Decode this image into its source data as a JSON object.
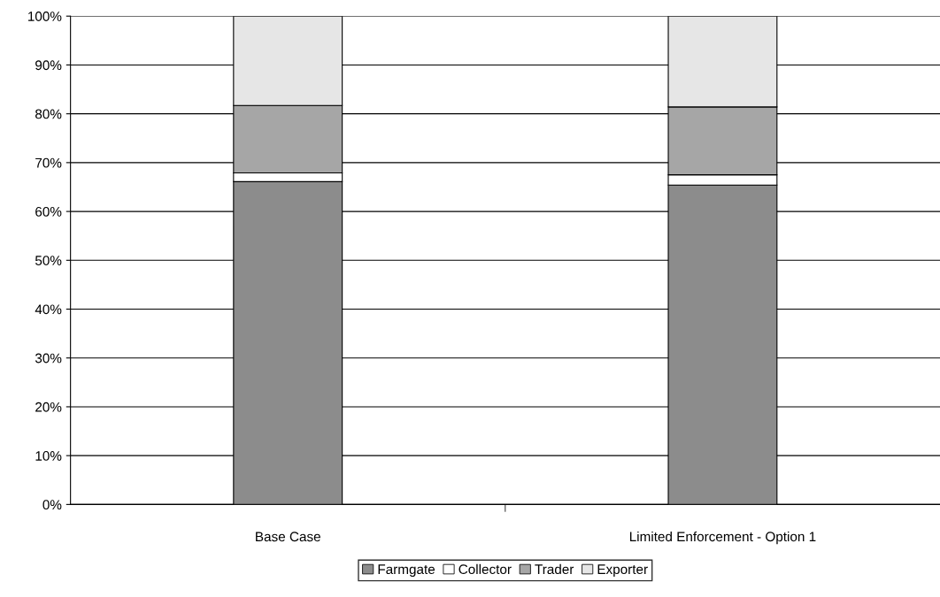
{
  "chart_data": {
    "type": "bar",
    "stacked": true,
    "categories": [
      "Base Case",
      "Limited Enforcement - Option 1"
    ],
    "series": [
      {
        "name": "Farmgate",
        "color": "#8c8c8c",
        "values": [
          66.1,
          65.4
        ]
      },
      {
        "name": "Collector",
        "color": "#ffffff",
        "values": [
          1.8,
          2.1
        ]
      },
      {
        "name": "Trader",
        "color": "#a6a6a6",
        "values": [
          13.8,
          13.9
        ]
      },
      {
        "name": "Exporter",
        "color": "#e6e6e6",
        "values": [
          18.3,
          18.6
        ]
      }
    ],
    "ylim": [
      0,
      100
    ],
    "yticks": [
      {
        "value": 0,
        "label": "0%"
      },
      {
        "value": 10,
        "label": "10%"
      },
      {
        "value": 20,
        "label": "20%"
      },
      {
        "value": 30,
        "label": "30%"
      },
      {
        "value": 40,
        "label": "40%"
      },
      {
        "value": 50,
        "label": "50%"
      },
      {
        "value": 60,
        "label": "60%"
      },
      {
        "value": 70,
        "label": "70%"
      },
      {
        "value": 80,
        "label": "80%"
      },
      {
        "value": 90,
        "label": "90%"
      },
      {
        "value": 100,
        "label": "100%"
      }
    ],
    "grid": "y",
    "legend": "bottom"
  }
}
